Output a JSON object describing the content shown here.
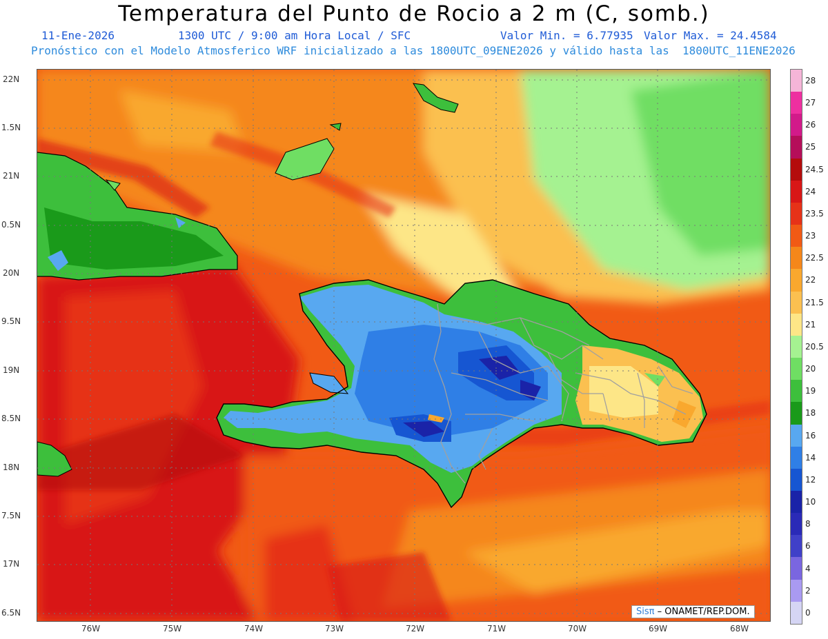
{
  "title": "Temperatura del Punto de Rocio a 2 m (C, somb.)",
  "subtitle_date": "11-Ene-2026",
  "subtitle_time": "1300 UTC / 9:00 am Hora Local / SFC",
  "subtitle_min": "Valor Min. = 6.77935",
  "subtitle_max": "Valor Max. = 24.4584",
  "subtitle_model": "Pronóstico con el Modelo Atmosferico WRF inicializado a las 1800UTC_09ENE2026 y válido hasta las  1800UTC_11ENE2026",
  "lat_labels": [
    "22N",
    "1.5N",
    "21N",
    "0.5N",
    "20N",
    "9.5N",
    "19N",
    "8.5N",
    "18N",
    "7.5N",
    "17N",
    "6.5N"
  ],
  "lon_labels": [
    "76W",
    "75W",
    "74W",
    "73W",
    "72W",
    "71W",
    "70W",
    "69W",
    "68W"
  ],
  "colorbar": {
    "labels": [
      "28",
      "27",
      "26",
      "25",
      "24.5",
      "24",
      "23.5",
      "23",
      "22.5",
      "22",
      "21.5",
      "21",
      "20.5",
      "20",
      "19",
      "18",
      "16",
      "14",
      "12",
      "10",
      "8",
      "6",
      "4",
      "2",
      "0"
    ],
    "colors": [
      "#f5b5d8",
      "#ee2fa0",
      "#d21a8a",
      "#b50e5a",
      "#b40c0c",
      "#d81717",
      "#e63218",
      "#f15a15",
      "#f5871a",
      "#f9a82e",
      "#fbc050",
      "#fde687",
      "#a5f291",
      "#6fde63",
      "#3dbf3c",
      "#1a9a1a",
      "#58a8f0",
      "#2f7fe6",
      "#1656d2",
      "#1a23a8",
      "#2a2ab7",
      "#4040c8",
      "#7a66e0",
      "#a99af1",
      "#d5d5f4"
    ]
  },
  "credit_brand": "Sisπ",
  "credit_text": " – ONAMET/REP.DOM."
}
